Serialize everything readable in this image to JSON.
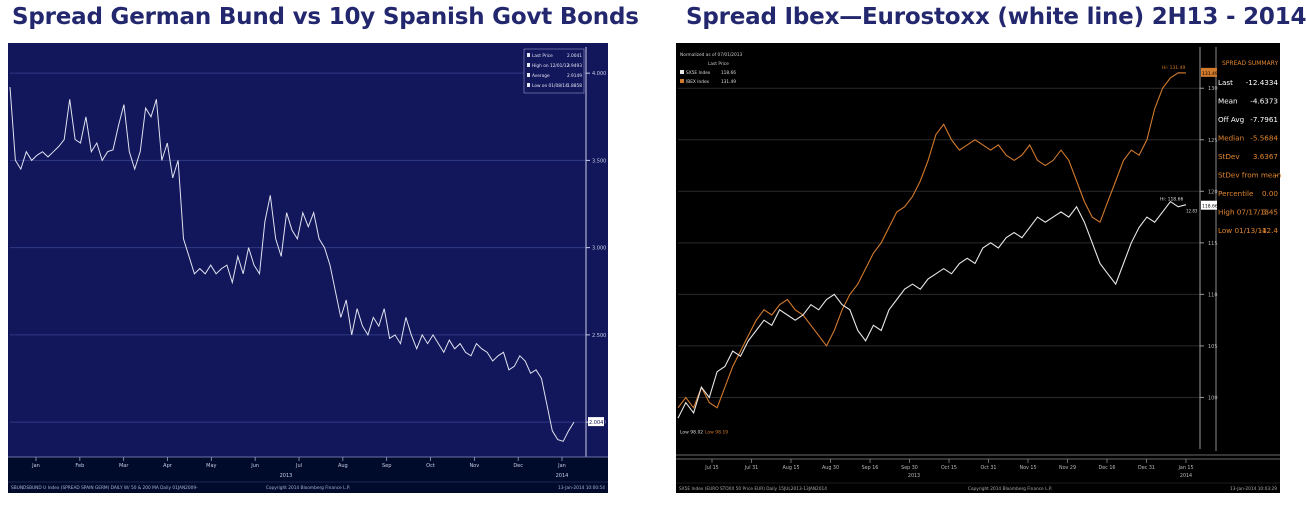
{
  "charts": [
    {
      "title": "Spread German Bund vs 10y Spanish Govt Bonds",
      "legend": [
        {
          "label": "Last Price",
          "value": "2.0041"
        },
        {
          "label": "High on 12/01/12",
          "value": "3.9493"
        },
        {
          "label": "Average",
          "value": "2.9149"
        },
        {
          "label": "Low on 01/08/14",
          "value": "1.8858"
        }
      ],
      "last_price_tag": "2.0041",
      "footer_left": "SBUNDSBUND U Index (SPREAD SPAIN GERM) DAILY W/ 50 & 200 MA   Daily 01JAN2009-",
      "footer_mid": "Copyright 2014 Bloomberg Finance L.P.",
      "footer_right": "13-Jan-2014 10:00:54",
      "year_labels": [
        "2013",
        "2014"
      ],
      "colors": {
        "background": "#12165a",
        "line": "#dfe3f0",
        "title": "#23286e"
      }
    },
    {
      "title": "Spread Ibex—Eurostoxx (white line) 2H13 - 2014",
      "legend_header": [
        "Normalized as of 07/01/2013",
        "Last Price"
      ],
      "legend": [
        {
          "label": "SX5E Index",
          "value": "118.66",
          "color": "#e8e8e8"
        },
        {
          "label": "IBEX Index",
          "value": "131.49",
          "color": "#d27a2c"
        }
      ],
      "high_tags": {
        "ibex": "Hi: 131.49",
        "eurostoxx": "Hi: 118.66"
      },
      "low_tags": {
        "eurostoxx": "Low 98.02",
        "ibex": "Low 98.19"
      },
      "right_tags": {
        "ibex": "131.49",
        "eurostoxx": "118.66",
        "diff": "12.83"
      },
      "summary_title": "SPREAD SUMMARY",
      "summary": [
        {
          "label": "Last",
          "value": "-12.4334",
          "color": "#ffffff"
        },
        {
          "label": "Mean",
          "value": "-4.6373",
          "color": "#ffffff"
        },
        {
          "label": "Off Avg",
          "value": "-7.7961",
          "color": "#ffffff"
        },
        {
          "label": "Median",
          "value": "-5.5684",
          "color": "#e0852f"
        },
        {
          "label": "StDev",
          "value": "3.6367",
          "color": "#e0852f"
        },
        {
          "label": "StDev from mean",
          "value": "-",
          "color": "#e0852f"
        },
        {
          "label": "Percentile",
          "value": "0.00",
          "color": "#e0852f"
        },
        {
          "label": "High 07/17/13",
          "value": "3.45",
          "color": "#e0852f"
        },
        {
          "label": "Low 01/13/14",
          "value": "-12.4",
          "color": "#e0852f"
        }
      ],
      "footer_left": "SX5E Index (EURO STOXX 50 Price EUR)  Daily 15JUL2013-13JAN2014",
      "footer_mid": "Copyright 2014 Bloomberg Finance L.P.",
      "footer_right": "13-Jan-2014 10:03:29",
      "year_labels": [
        "2013",
        "2014"
      ],
      "colors": {
        "background": "#000000",
        "eurostoxx": "#e8e8e8",
        "ibex": "#d27a2c",
        "title": "#23286e"
      }
    }
  ],
  "chart_data": [
    {
      "type": "line",
      "title": "Spread German Bund vs 10y Spanish Govt Bonds",
      "x_tick_labels": [
        "Jan",
        "Feb",
        "Mar",
        "Apr",
        "May",
        "Jun",
        "Jul",
        "Aug",
        "Sep",
        "Oct",
        "Nov",
        "Dec",
        "Jan"
      ],
      "y_tick_labels": [
        "4.000",
        "3.500",
        "3.000",
        "2.500",
        "2.000"
      ],
      "ylim": [
        1.8,
        4.15
      ],
      "grid": true,
      "legend_position": "top-right",
      "y_axis_position": "right",
      "series": [
        {
          "values": [
            3.92,
            3.5,
            3.45,
            3.55,
            3.5,
            3.53,
            3.55,
            3.52,
            3.55,
            3.58,
            3.62,
            3.85,
            3.62,
            3.6,
            3.75,
            3.55,
            3.6,
            3.5,
            3.55,
            3.56,
            3.7,
            3.82,
            3.55,
            3.45,
            3.55,
            3.8,
            3.75,
            3.85,
            3.5,
            3.6,
            3.4,
            3.5,
            3.05,
            2.95,
            2.85,
            2.88,
            2.85,
            2.9,
            2.85,
            2.88,
            2.9,
            2.8,
            2.95,
            2.85,
            3.0,
            2.9,
            2.85,
            3.15,
            3.3,
            3.05,
            2.95,
            3.2,
            3.1,
            3.05,
            3.2,
            3.12,
            3.2,
            3.05,
            3.0,
            2.9,
            2.75,
            2.6,
            2.7,
            2.5,
            2.65,
            2.55,
            2.5,
            2.6,
            2.55,
            2.65,
            2.48,
            2.5,
            2.45,
            2.6,
            2.5,
            2.42,
            2.5,
            2.45,
            2.5,
            2.45,
            2.4,
            2.47,
            2.42,
            2.45,
            2.4,
            2.38,
            2.45,
            2.42,
            2.4,
            2.35,
            2.38,
            2.4,
            2.3,
            2.32,
            2.38,
            2.35,
            2.28,
            2.3,
            2.25,
            2.1,
            1.95,
            1.9,
            1.89,
            1.95,
            2.0
          ]
        }
      ]
    },
    {
      "type": "line",
      "title": "Spread Ibex—Eurostoxx (white line) 2H13 - 2014",
      "x_tick_labels": [
        "Jul 15",
        "Jul 31",
        "Aug 15",
        "Aug 30",
        "Sep 16",
        "Sep 30",
        "Oct 15",
        "Oct 31",
        "Nov 15",
        "Nov 29",
        "Dec 16",
        "Dec 31",
        "Jan 15"
      ],
      "y_tick_labels": [
        "130",
        "125",
        "120",
        "115",
        "110",
        "105",
        "100"
      ],
      "ylim": [
        95,
        134
      ],
      "grid": true,
      "legend_position": "top-left",
      "y_axis_position": "right",
      "series": [
        {
          "name": "SX5E Index",
          "values": [
            98.0,
            99.5,
            98.5,
            101.0,
            100.0,
            102.5,
            103.0,
            104.5,
            104.0,
            105.5,
            106.5,
            107.5,
            107.0,
            108.5,
            108.0,
            107.5,
            108.0,
            109.0,
            108.5,
            109.5,
            110.0,
            109.0,
            108.5,
            106.5,
            105.5,
            107.0,
            106.5,
            108.5,
            109.5,
            110.5,
            111.0,
            110.5,
            111.5,
            112.0,
            112.5,
            112.0,
            113.0,
            113.5,
            113.0,
            114.5,
            115.0,
            114.5,
            115.5,
            116.0,
            115.5,
            116.5,
            117.5,
            117.0,
            117.5,
            118.0,
            117.5,
            118.5,
            117.0,
            115.0,
            113.0,
            112.0,
            111.0,
            113.0,
            115.0,
            116.5,
            117.5,
            117.0,
            118.0,
            119.0,
            118.5,
            118.7
          ]
        },
        {
          "name": "IBEX Index",
          "values": [
            99.0,
            100.0,
            99.0,
            101.0,
            99.5,
            99.0,
            101.0,
            103.0,
            104.5,
            106.0,
            107.5,
            108.5,
            108.0,
            109.0,
            109.5,
            108.5,
            108.0,
            107.0,
            106.0,
            105.0,
            106.5,
            108.5,
            110.0,
            111.0,
            112.5,
            114.0,
            115.0,
            116.5,
            118.0,
            118.5,
            119.5,
            121.0,
            123.0,
            125.5,
            126.5,
            125.0,
            124.0,
            124.5,
            125.0,
            124.5,
            124.0,
            124.5,
            123.5,
            123.0,
            123.5,
            124.5,
            123.0,
            122.5,
            123.0,
            124.0,
            123.0,
            121.0,
            119.0,
            117.5,
            117.0,
            119.0,
            121.0,
            123.0,
            124.0,
            123.5,
            125.0,
            128.0,
            130.0,
            131.0,
            131.5,
            131.49
          ]
        }
      ]
    }
  ]
}
